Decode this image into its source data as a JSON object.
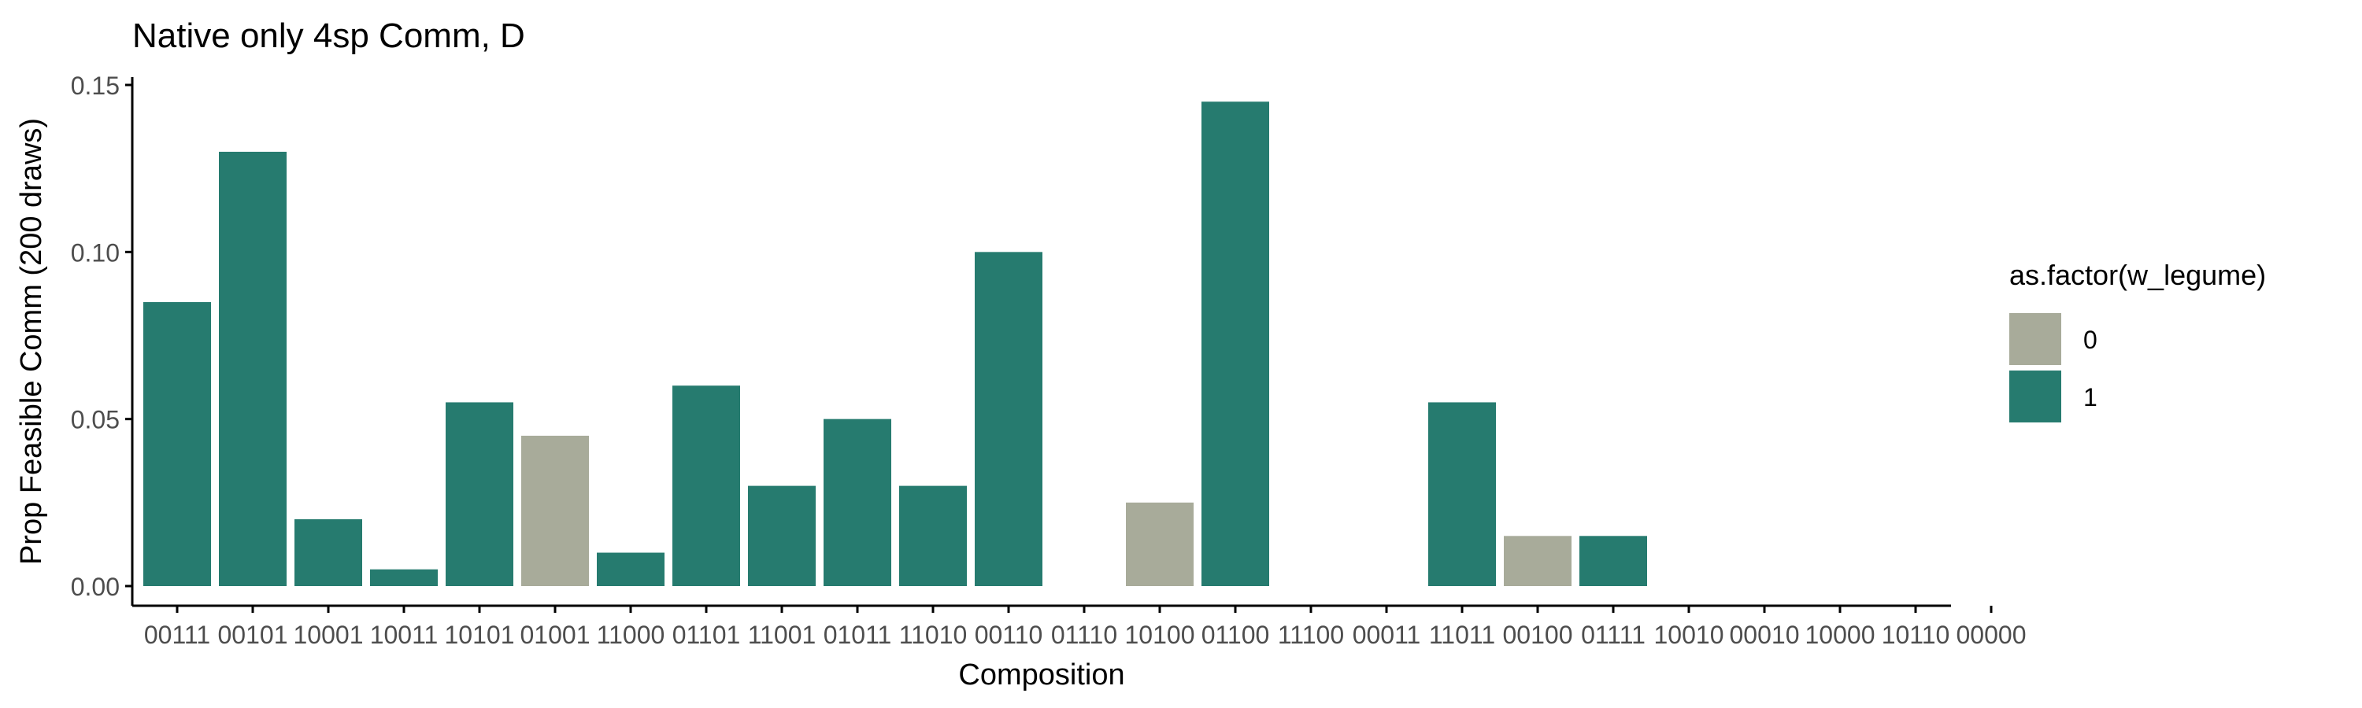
{
  "chart_data": {
    "type": "bar",
    "title": "Native only 4sp Comm, D",
    "xlabel": "Composition",
    "ylabel": "Prop Feasible Comm (200 draws)",
    "ylim": [
      0,
      0.15
    ],
    "yticks": [
      0.0,
      0.05,
      0.1,
      0.15
    ],
    "ytick_labels": [
      "0.00",
      "0.05",
      "0.10",
      "0.15"
    ],
    "grid": false,
    "categories": [
      "00111",
      "00101",
      "10001",
      "10011",
      "10101",
      "01001",
      "11000",
      "01101",
      "11001",
      "01011",
      "11010",
      "00110",
      "01110",
      "10100",
      "01100",
      "11100",
      "00011",
      "11011",
      "00100",
      "01111",
      "10010",
      "00010",
      "10000",
      "10110",
      "00000"
    ],
    "values": [
      0.085,
      0.13,
      0.02,
      0.005,
      0.055,
      0.045,
      0.01,
      0.06,
      0.03,
      0.05,
      0.03,
      0.1,
      0,
      0.025,
      0.145,
      0,
      0,
      0.055,
      0.015,
      0.015,
      0,
      0,
      0,
      0,
      0
    ],
    "w_legume": [
      1,
      1,
      1,
      1,
      1,
      0,
      1,
      1,
      1,
      1,
      1,
      1,
      1,
      0,
      1,
      1,
      1,
      1,
      0,
      1,
      1,
      1,
      1,
      1,
      1
    ],
    "legend": {
      "title": "as.factor(w_legume)",
      "placement": "right",
      "entries": [
        {
          "label": "0",
          "color": "#a8ab9a"
        },
        {
          "label": "1",
          "color": "#267b6f"
        }
      ]
    }
  }
}
